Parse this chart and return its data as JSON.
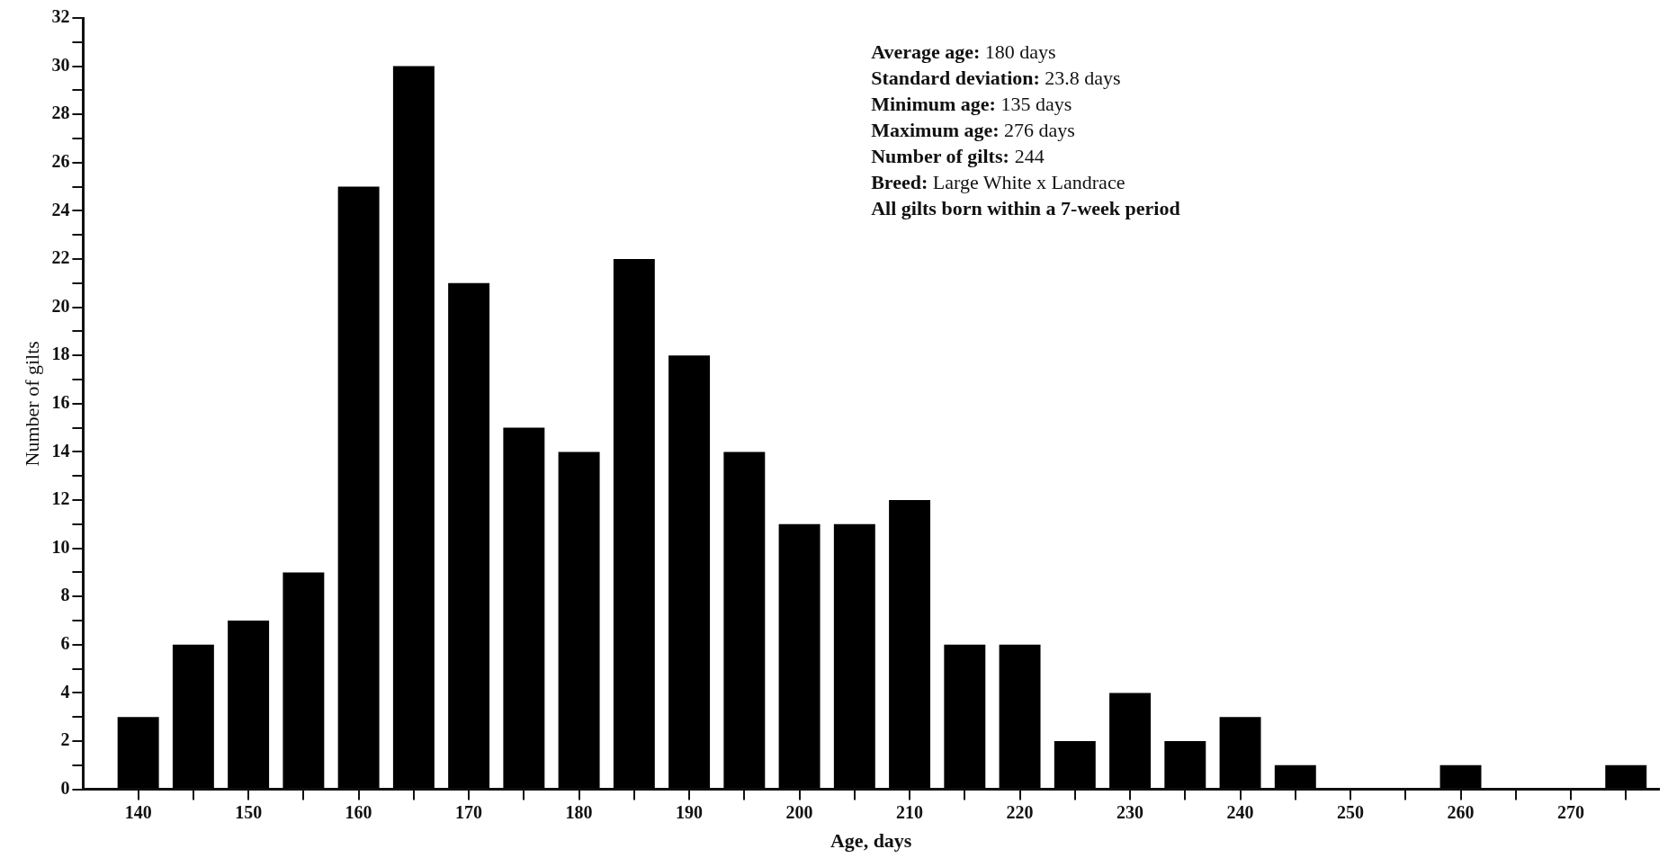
{
  "chart_data": {
    "type": "histogram",
    "xlabel": "Age, days",
    "ylabel": "Number of gilts",
    "bins": [
      137.5,
      142.5,
      147.5,
      152.5,
      157.5,
      162.5,
      167.5,
      172.5,
      177.5,
      182.5,
      187.5,
      192.5,
      197.5,
      202.5,
      207.5,
      212.5,
      217.5,
      222.5,
      227.5,
      232.5,
      237.5,
      242.5,
      247.5,
      252.5,
      257.5,
      262.5,
      267.5,
      272.5,
      277.5
    ],
    "values": [
      3,
      6,
      7,
      9,
      25,
      30,
      21,
      15,
      14,
      22,
      18,
      14,
      11,
      11,
      12,
      6,
      6,
      2,
      4,
      2,
      3,
      1,
      0,
      0,
      1,
      0,
      0,
      1
    ],
    "color": "#000000",
    "xlim": [
      135,
      278
    ],
    "xticks": [
      140,
      {
        "value": 145,
        "label": null
      },
      150,
      {
        "value": 155,
        "label": null
      },
      160,
      {
        "value": 165,
        "label": null
      },
      170,
      {
        "value": 175,
        "label": null
      },
      180,
      {
        "value": 185,
        "label": null
      },
      190,
      {
        "value": 195,
        "label": null
      },
      200,
      {
        "value": 205,
        "label": null
      },
      210,
      {
        "value": 215,
        "label": null
      },
      220,
      {
        "value": 225,
        "label": null
      },
      230,
      {
        "value": 235,
        "label": null
      },
      240,
      {
        "value": 245,
        "label": null
      },
      250,
      {
        "value": 255,
        "label": null
      },
      260,
      {
        "value": 265,
        "label": null
      },
      270,
      {
        "value": 275,
        "label": null
      }
    ],
    "ylim": [
      0,
      32
    ],
    "yticks": [
      0,
      {
        "value": 1,
        "label": null
      },
      2,
      {
        "value": 3,
        "label": null
      },
      4,
      {
        "value": 5,
        "label": null
      },
      6,
      {
        "value": 7,
        "label": null
      },
      8,
      {
        "value": 9,
        "label": null
      },
      10,
      {
        "value": 11,
        "label": null
      },
      12,
      {
        "value": 13,
        "label": null
      },
      14,
      {
        "value": 15,
        "label": null
      },
      16,
      {
        "value": 17,
        "label": null
      },
      18,
      {
        "value": 19,
        "label": null
      },
      20,
      {
        "value": 21,
        "label": null
      },
      22,
      {
        "value": 23,
        "label": null
      },
      24,
      {
        "value": 25,
        "label": null
      },
      26,
      {
        "value": 27,
        "label": null
      },
      28,
      {
        "value": 29,
        "label": null
      },
      30,
      {
        "value": 31,
        "label": null
      },
      32
    ],
    "annotations": [
      "Average age: 180 days",
      "Standard deviation: 23.8 days",
      "Minimum age: 135 days",
      "Maximum age: 276 days",
      "Number of gilts: 244",
      "Breed: Large White x Landrace",
      "All gilts born within a 7-week period"
    ]
  }
}
